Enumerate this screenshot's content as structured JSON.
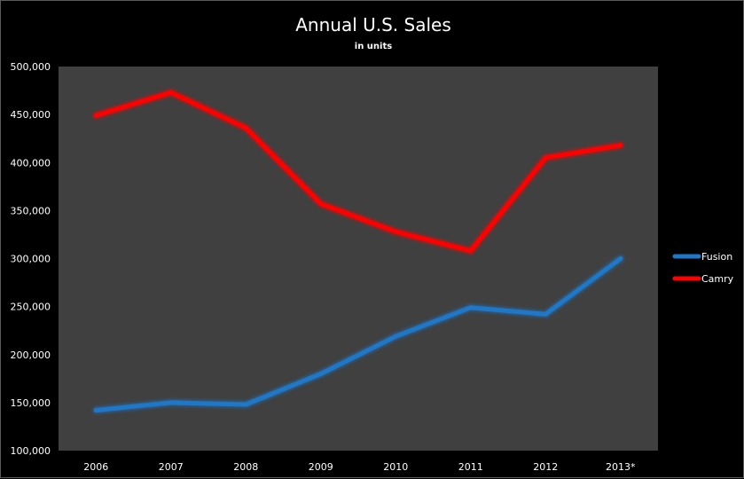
{
  "chart_data": {
    "type": "line",
    "title": "Annual U.S. Sales",
    "subtitle": "in units",
    "xlabel": "",
    "ylabel": "",
    "categories": [
      "2006",
      "2007",
      "2008",
      "2009",
      "2010",
      "2011",
      "2012",
      "2013*"
    ],
    "ylim": [
      100000,
      500000
    ],
    "yticks": [
      100000,
      150000,
      200000,
      250000,
      300000,
      350000,
      400000,
      450000,
      500000
    ],
    "ytick_labels": [
      "100,000",
      "150,000",
      "200,000",
      "250,000",
      "300,000",
      "350,000",
      "400,000",
      "450,000",
      "500,000"
    ],
    "grid": false,
    "legend_position": "right",
    "plot_background": "#404040",
    "page_background": "#000000",
    "series": [
      {
        "name": "Fusion",
        "color": "#1f77c8",
        "values": [
          142000,
          150000,
          148000,
          180000,
          219000,
          249000,
          242000,
          300000
        ]
      },
      {
        "name": "Camry",
        "color": "#ff0000",
        "values": [
          449000,
          473000,
          436000,
          357000,
          328000,
          308000,
          405000,
          418000
        ]
      }
    ]
  }
}
